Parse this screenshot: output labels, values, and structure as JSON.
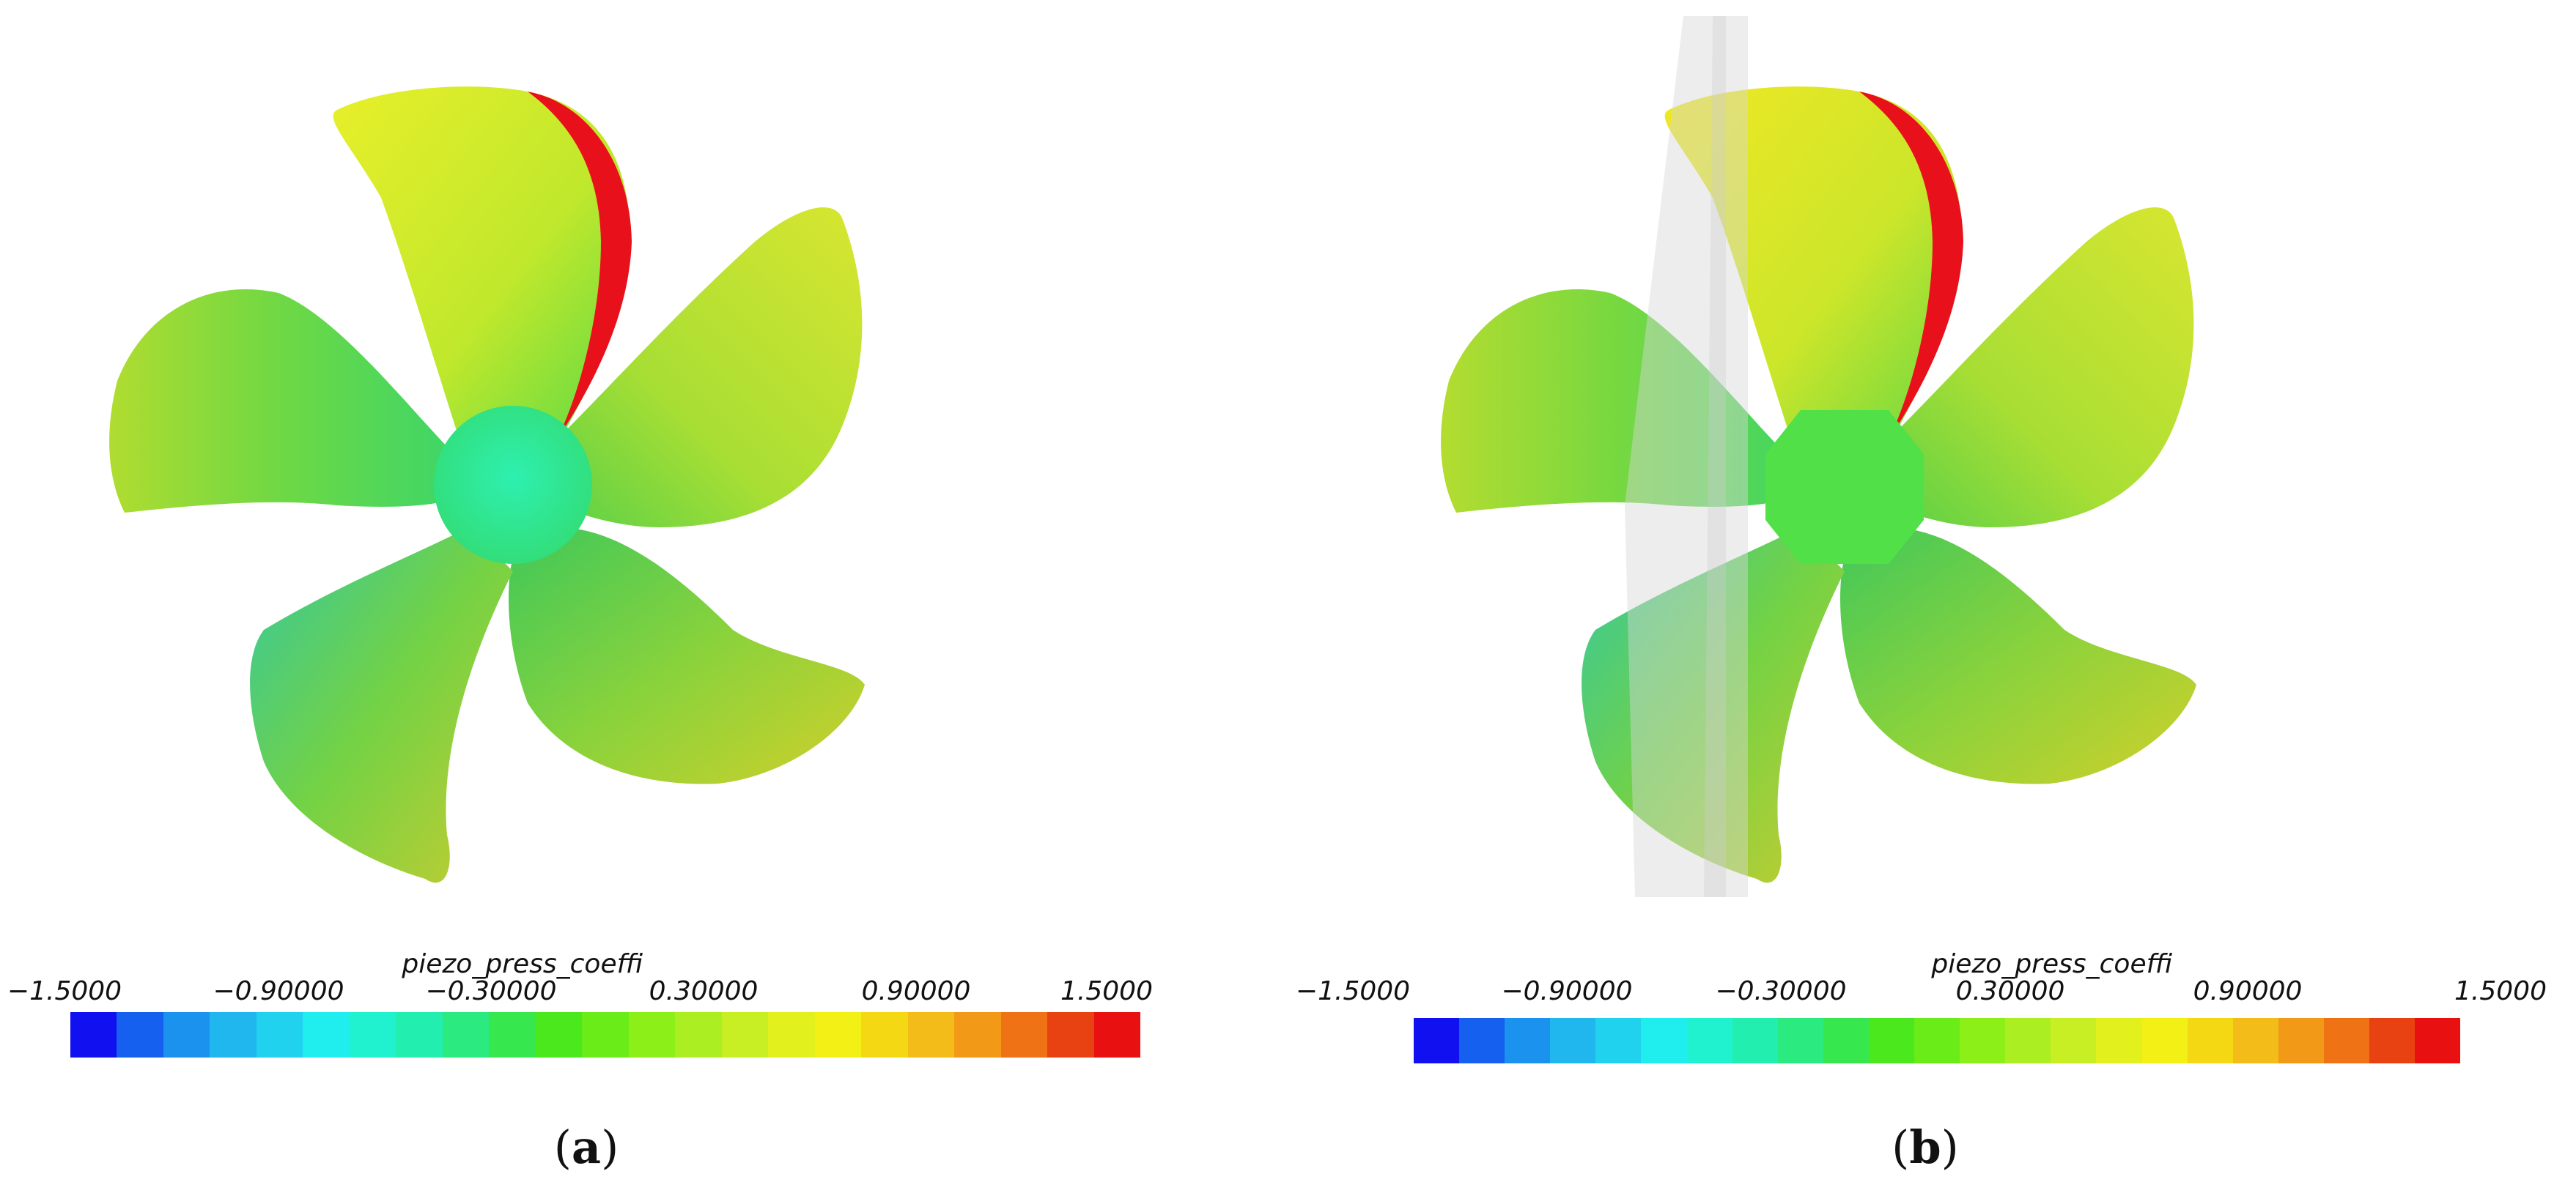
{
  "panels": [
    {
      "id": "a",
      "caption_letter": "a",
      "shaft_visible": false,
      "colorbar": {
        "title": "piezo_press_coeffi",
        "ticks": [
          "−1.5000",
          "−0.90000",
          "−0.30000",
          "0.30000",
          "0.90000",
          "1.5000"
        ]
      }
    },
    {
      "id": "b",
      "caption_letter": "b",
      "shaft_visible": true,
      "colorbar": {
        "title": "piezo_press_coeffi",
        "ticks": [
          "−1.5000",
          "−0.90000",
          "−0.30000",
          "0.30000",
          "0.90000",
          "1.5000"
        ]
      }
    }
  ],
  "colorbar_colors": [
    "#1010f0",
    "#1560ee",
    "#1a92ee",
    "#20b6ee",
    "#20d2ee",
    "#20eeee",
    "#20f2d0",
    "#22eeb0",
    "#2aea80",
    "#36e84e",
    "#4ce81e",
    "#6aec18",
    "#8cf018",
    "#abee22",
    "#c8ee24",
    "#e2f01e",
    "#f2f014",
    "#f4d814",
    "#f4bc18",
    "#f29a18",
    "#ef7214",
    "#e94212",
    "#e81010"
  ]
}
